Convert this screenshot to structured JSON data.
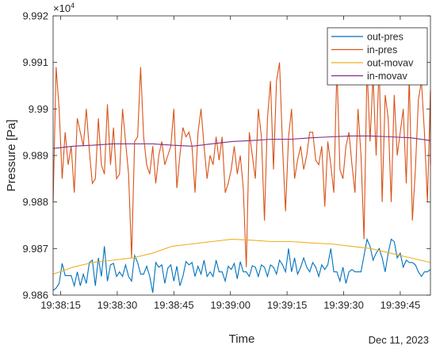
{
  "chart_data": {
    "type": "line",
    "xlabel": "Time",
    "ylabel": "Pressure [Pa]",
    "y_exponent_label": "×10",
    "y_exponent_power": "4",
    "date_label": "Dec 11, 2023",
    "xlim": [
      "19:38:13",
      "19:39:53"
    ],
    "ylim": [
      9.986,
      9.992
    ],
    "x_ticks": [
      "19:38:15",
      "19:38:30",
      "19:38:45",
      "19:39:00",
      "19:39:15",
      "19:39:30",
      "19:39:45"
    ],
    "y_ticks": [
      "9.986",
      "9.987",
      "9.988",
      "9.989",
      "9.99",
      "9.991",
      "9.992"
    ],
    "y_tick_values": [
      9.986,
      9.987,
      9.988,
      9.989,
      9.99,
      9.991,
      9.992
    ],
    "grid": false,
    "legend_position": "top-right",
    "x_start": "19:38:13",
    "x_step_seconds": 0.8,
    "series": [
      {
        "name": "out-pres",
        "color": "#0072BD",
        "values": [
          9.9861,
          9.98615,
          9.98625,
          9.98668,
          9.98642,
          9.98642,
          9.98642,
          9.9862,
          9.9865,
          9.9862,
          9.98645,
          9.98625,
          9.9867,
          9.98675,
          9.9862,
          9.9868,
          9.9864,
          9.98705,
          9.9863,
          9.98665,
          9.98668,
          9.9864,
          9.9865,
          9.9864,
          9.98665,
          9.9864,
          9.9863,
          9.98685,
          9.9867,
          9.98645,
          9.98645,
          9.98662,
          9.9864,
          9.98605,
          9.9867,
          9.9866,
          9.98665,
          9.98625,
          9.98658,
          9.98665,
          9.9863,
          9.98662,
          9.9862,
          9.9864,
          9.98672,
          9.98665,
          9.9867,
          9.9864,
          9.98662,
          9.98645,
          9.98675,
          9.9864,
          9.9865,
          9.9864,
          9.98675,
          9.9865,
          9.9865,
          9.9863,
          9.98662,
          9.98655,
          9.98668,
          9.98635,
          9.98672,
          9.9865,
          9.9865,
          9.9864,
          9.98663,
          9.9866,
          9.9864,
          9.98665,
          9.9866,
          9.9864,
          9.98665,
          9.9866,
          9.98645,
          9.98675,
          9.98665,
          9.9865,
          9.987,
          9.9865,
          9.9868,
          9.98645,
          9.9866,
          9.9868,
          9.9866,
          9.9865,
          9.9867,
          9.9866,
          9.9864,
          9.98665,
          9.98655,
          9.98665,
          9.987,
          9.9865,
          9.9865,
          9.9863,
          9.9866,
          9.98625,
          9.9865,
          9.98655,
          9.9865,
          9.9865,
          9.9865,
          9.98685,
          9.9872,
          9.98705,
          9.98675,
          9.9869,
          9.987,
          9.9868,
          9.9865,
          9.9869,
          9.9872,
          9.98715,
          9.9868,
          9.9869,
          9.9866,
          9.98675,
          9.9867,
          9.9867,
          9.98665,
          9.9865,
          9.9864,
          9.9865,
          9.9865,
          9.98655,
          9.98655,
          9.98655
        ]
      },
      {
        "name": "in-pres",
        "color": "#D95319",
        "values": [
          9.988,
          9.9909,
          9.99,
          9.9885,
          9.9895,
          9.9888,
          9.9892,
          9.9882,
          9.9898,
          9.9895,
          9.9892,
          9.99,
          9.9891,
          9.9884,
          9.9885,
          9.9898,
          9.9888,
          9.9886,
          9.9901,
          9.9888,
          9.9896,
          9.9885,
          9.9886,
          9.99,
          9.9893,
          9.9886,
          9.9868,
          9.9893,
          9.9894,
          9.9909,
          9.9894,
          9.9888,
          9.9886,
          9.9892,
          9.9884,
          9.989,
          9.9893,
          9.9888,
          9.989,
          9.9892,
          9.99,
          9.9883,
          9.989,
          9.9896,
          9.9894,
          9.9895,
          9.9892,
          9.9882,
          9.9895,
          9.99,
          9.9892,
          9.9885,
          9.989,
          9.9888,
          9.9894,
          9.9889,
          9.9894,
          9.9882,
          9.9884,
          9.9887,
          9.9892,
          9.9886,
          9.989,
          9.9883,
          9.9866,
          9.9895,
          9.989,
          9.9885,
          9.99,
          9.9894,
          9.9876,
          9.9898,
          9.9906,
          9.9887,
          9.9906,
          9.991,
          9.9892,
          9.9878,
          9.9894,
          9.99,
          9.9885,
          9.9889,
          9.9892,
          9.9887,
          9.989,
          9.9895,
          9.9895,
          9.9889,
          9.9888,
          9.9892,
          9.9879,
          9.9893,
          9.9888,
          9.9882,
          9.9909,
          9.9887,
          9.9885,
          9.9892,
          9.9895,
          9.9888,
          9.9882,
          9.99,
          9.989,
          9.9872,
          9.9909,
          9.9893,
          9.9907,
          9.989,
          9.991,
          9.988,
          9.9903,
          9.9898,
          9.988,
          9.9903,
          9.989,
          9.9895,
          9.99,
          9.9884,
          9.9907,
          9.9876,
          9.9887,
          9.9902,
          9.9906,
          9.9895,
          9.988,
          9.9904,
          9.9888,
          9.9902
        ]
      },
      {
        "name": "out-movav",
        "color": "#EDB120",
        "values": [
          9.98645,
          9.9866,
          9.9867,
          9.98675,
          9.9868,
          9.9869,
          9.98705,
          9.9871,
          9.98715,
          9.9872,
          9.98718,
          9.98715,
          9.98715,
          9.98712,
          9.9871,
          9.98705,
          9.987,
          9.9869,
          9.9868,
          9.9867
        ]
      },
      {
        "name": "in-movav",
        "color": "#7E2F8E",
        "values": [
          9.98915,
          9.9892,
          9.98922,
          9.98925,
          9.98925,
          9.98925,
          9.98922,
          9.9892,
          9.98925,
          9.9893,
          9.98932,
          9.98935,
          9.98935,
          9.98938,
          9.9894,
          9.98942,
          9.98942,
          9.9894,
          9.98938,
          9.98932
        ]
      }
    ]
  }
}
